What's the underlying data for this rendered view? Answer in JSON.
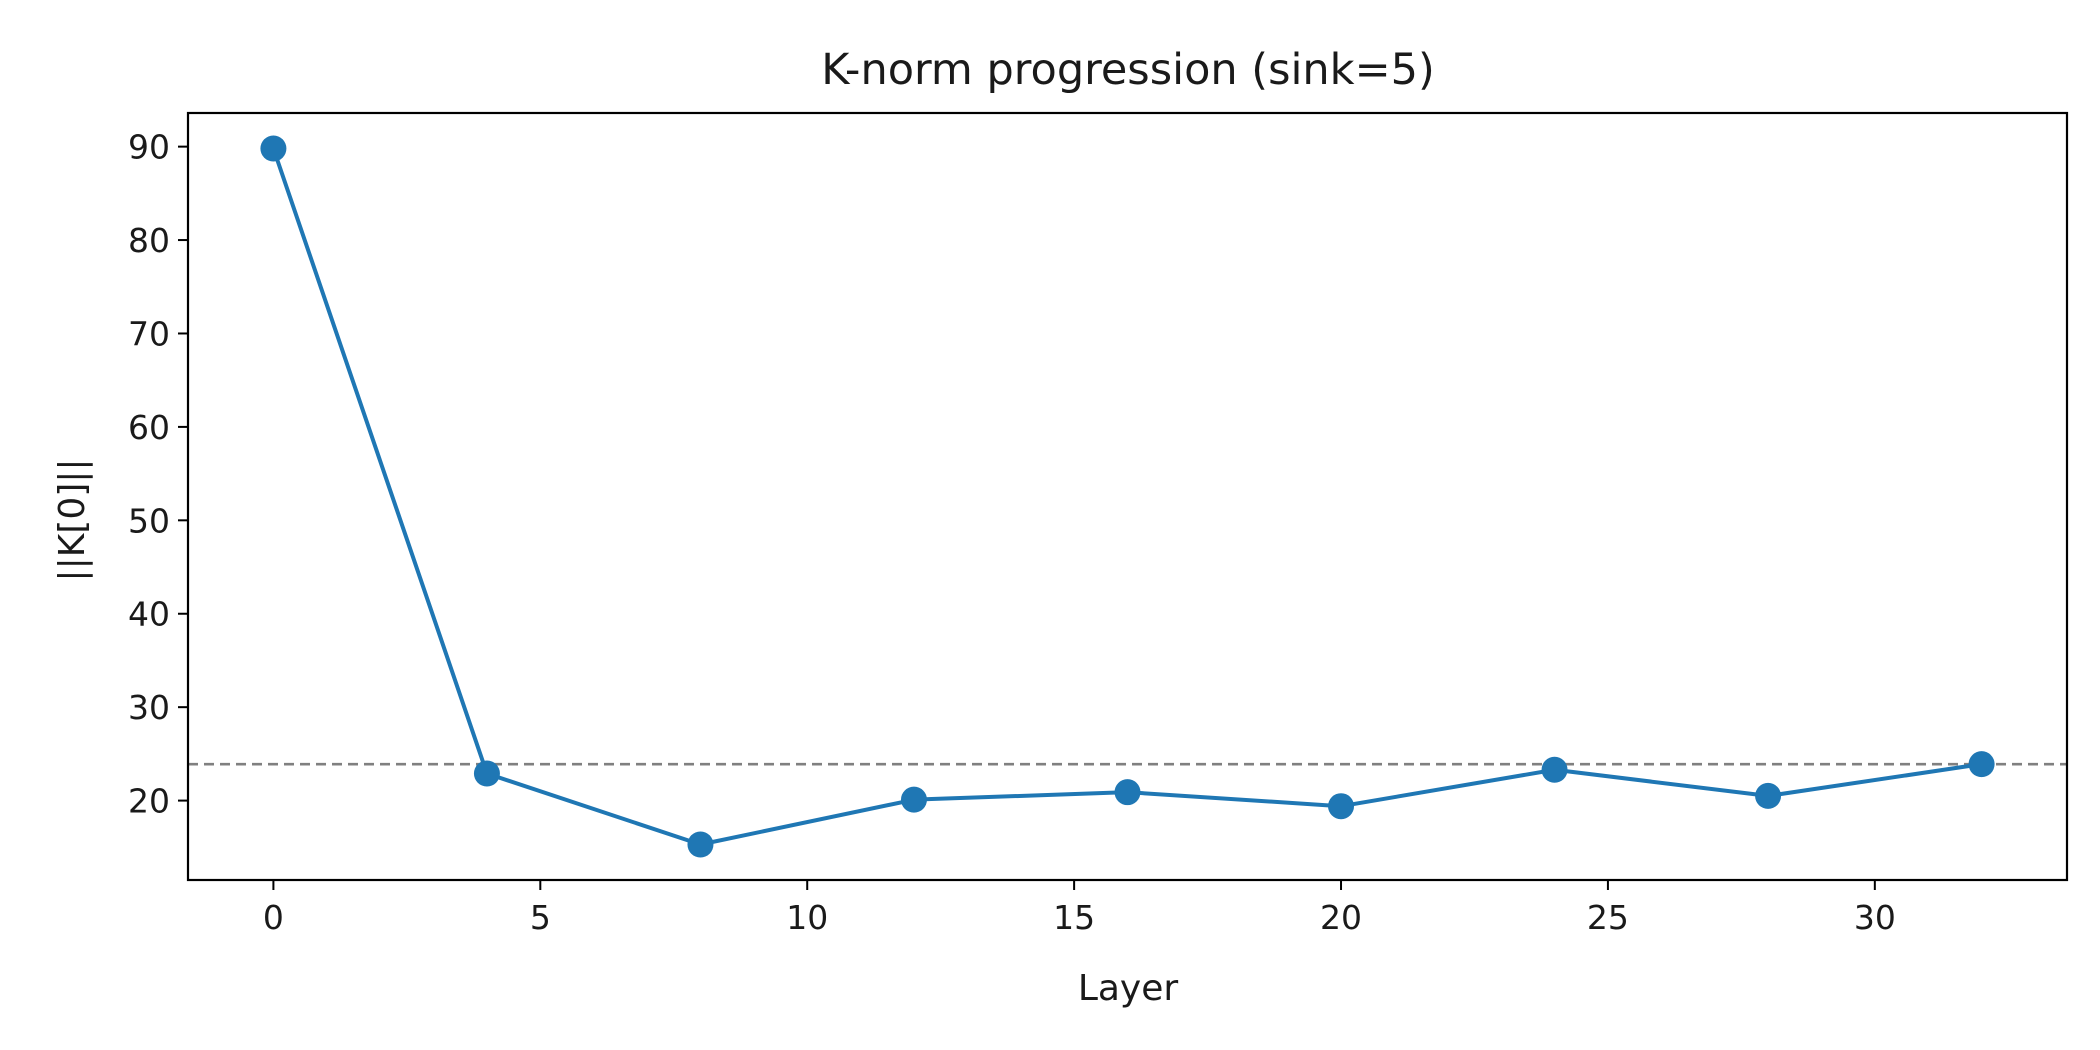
{
  "chart_data": {
    "type": "line",
    "title": "K-norm progression (sink=5)",
    "xlabel": "Layer",
    "ylabel": "||K[0]||",
    "x": [
      0,
      4,
      8,
      12,
      16,
      20,
      24,
      28,
      32
    ],
    "series": [
      {
        "values": [
          89.8,
          22.9,
          15.3,
          20.1,
          20.9,
          19.4,
          23.3,
          20.5,
          23.9
        ]
      }
    ],
    "reference_line": {
      "y": 23.9,
      "style": "dashed",
      "color": "#808080"
    },
    "xlim": [
      -1.6,
      33.6
    ],
    "ylim": [
      11.5,
      93.6
    ],
    "xticks": [
      0,
      5,
      10,
      15,
      20,
      25,
      30
    ],
    "yticks": [
      20,
      30,
      40,
      50,
      60,
      70,
      80,
      90
    ],
    "line_color": "#1f77b4",
    "grid": false,
    "legend": "none"
  }
}
